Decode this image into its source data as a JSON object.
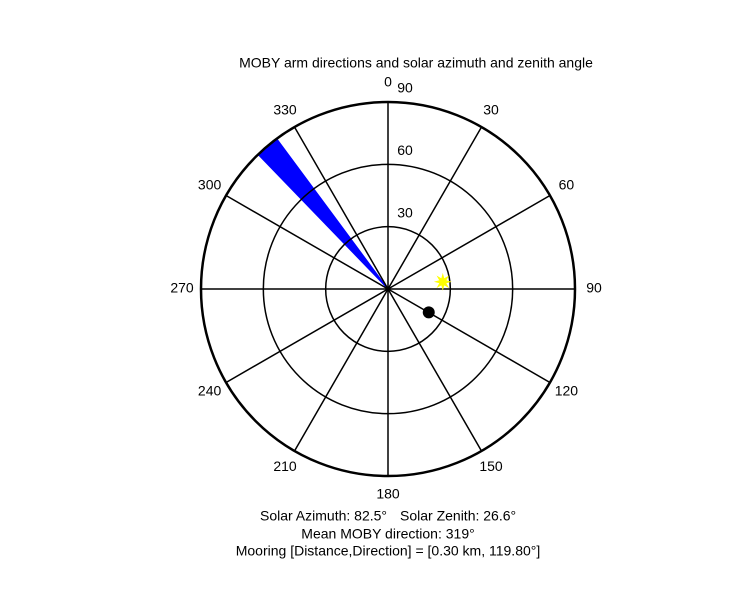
{
  "chart_data": {
    "type": "polar",
    "title": "MOBY arm directions and solar azimuth and zenith angle",
    "theta_ticks": [
      0,
      30,
      60,
      90,
      120,
      150,
      180,
      210,
      240,
      270,
      300,
      330
    ],
    "rlim": [
      0,
      90
    ],
    "rticks": [
      30,
      60,
      90
    ],
    "wedge": {
      "theta": [
        316,
        323.5
      ],
      "r": 90,
      "color": "#0000ff"
    },
    "sun": {
      "azimuth": 82.5,
      "zenith": 26.6,
      "color": "#ffff00"
    },
    "mooring": {
      "direction": 119.8,
      "r": 22.6,
      "color": "#000000"
    },
    "annotations": [
      "Solar Azimuth: 82.5°",
      "Solar Zenith: 26.6°",
      "Mean MOBY direction: 319°",
      "Mooring [Distance,Direction] = [0.30 km, 119.80°]"
    ]
  }
}
